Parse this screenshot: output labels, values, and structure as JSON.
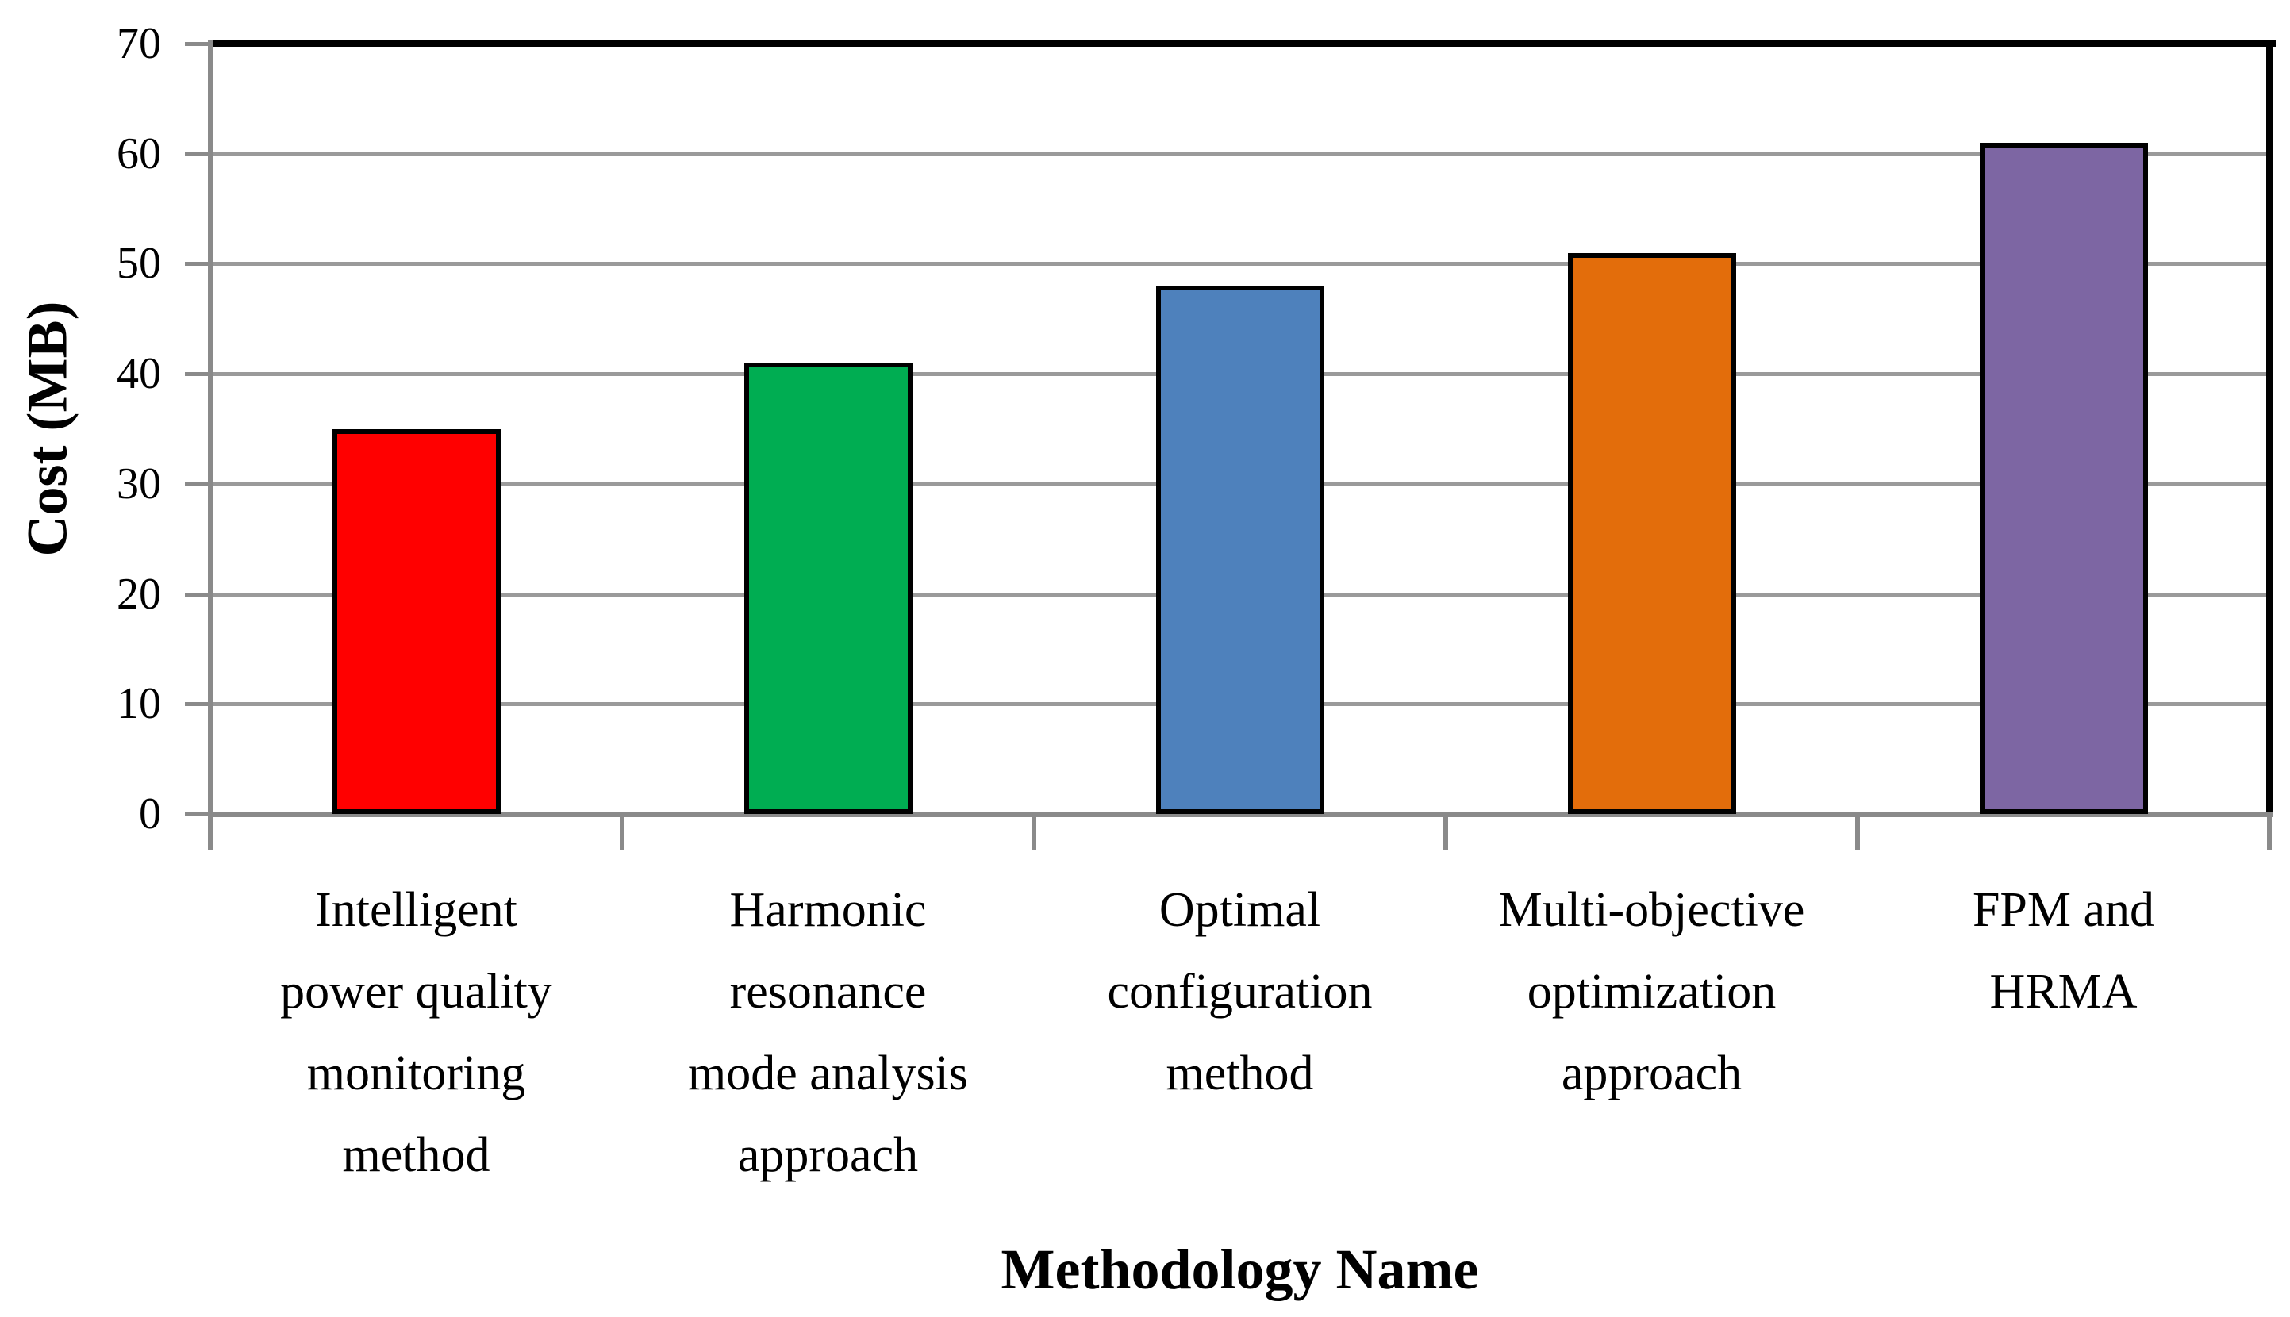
{
  "chart_data": {
    "type": "bar",
    "title": "",
    "xlabel": "Methodology Name",
    "ylabel": "Cost (MB)",
    "categories": [
      "Intelligent power quality monitoring method",
      "Harmonic resonance mode analysis approach",
      "Optimal configuration method",
      "Multi-objective optimization approach",
      "FPM and HRMA"
    ],
    "category_lines": [
      [
        "Intelligent",
        "power quality",
        "monitoring",
        "method"
      ],
      [
        "Harmonic",
        "resonance",
        "mode analysis",
        "approach"
      ],
      [
        "Optimal",
        "configuration",
        "method"
      ],
      [
        "Multi-objective",
        "optimization",
        "approach"
      ],
      [
        "FPM and",
        "HRMA"
      ]
    ],
    "values": [
      35,
      41,
      48,
      51,
      61
    ],
    "bar_colors": [
      "#FF0000",
      "#00AD52",
      "#4E81BC",
      "#E36D0B",
      "#7D66A3"
    ],
    "bar_border_color": "#000000",
    "ylim": [
      0,
      70
    ],
    "yticks": [
      0,
      10,
      20,
      30,
      40,
      50,
      60,
      70
    ],
    "grid": "horizontal",
    "grid_color": "#9A9A9A",
    "axis_color": "#8A8A8A",
    "plot_border_color": "#000000",
    "legend": "none"
  }
}
